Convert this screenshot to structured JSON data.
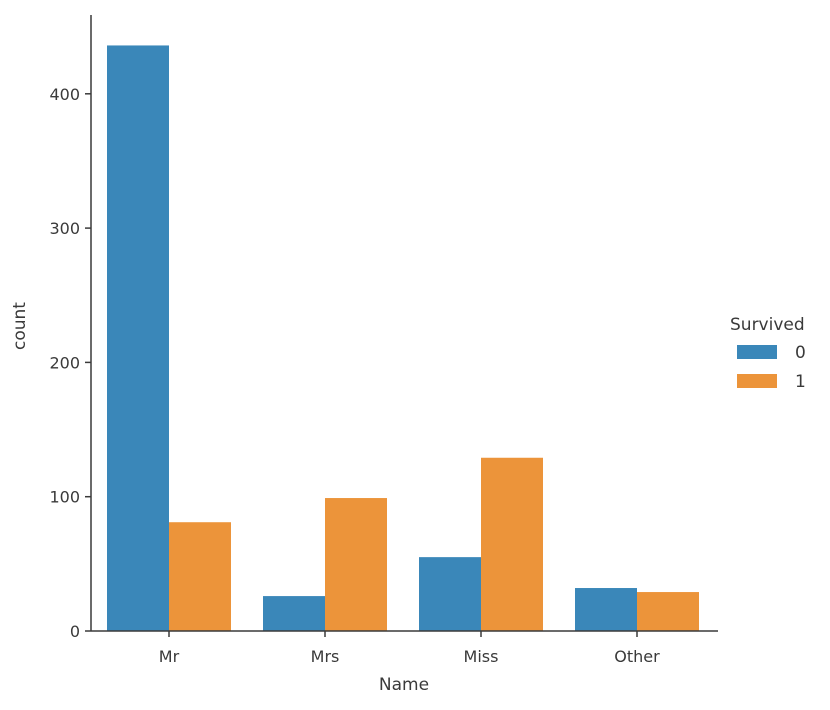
{
  "chart_data": {
    "type": "bar",
    "xlabel": "Name",
    "ylabel": "count",
    "categories": [
      "Mr",
      "Mrs",
      "Miss",
      "Other"
    ],
    "series": [
      {
        "name": "0",
        "values": [
          436,
          26,
          55,
          32
        ],
        "color": "#3a87b9"
      },
      {
        "name": "1",
        "values": [
          81,
          99,
          129,
          29
        ],
        "color": "#ec943a"
      }
    ],
    "ylim": [
      0,
      460
    ],
    "yticks": [
      0,
      100,
      200,
      300,
      400
    ],
    "legend": {
      "title": "Survived",
      "position": "right"
    },
    "grid": false
  }
}
